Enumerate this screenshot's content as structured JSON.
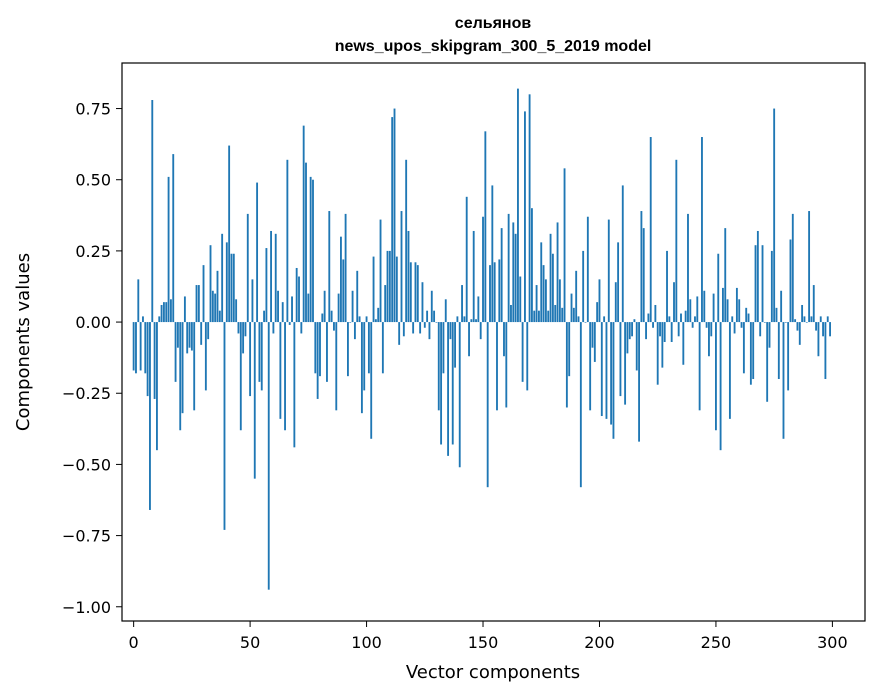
{
  "chart_data": {
    "type": "bar",
    "title": "сельянов",
    "subtitle": "news_upos_skipgram_300_5_2019 model",
    "xlabel": "Vector components",
    "ylabel": "Components values",
    "xlim": [
      -5,
      314
    ],
    "ylim": [
      -1.05,
      0.91
    ],
    "xticks": [
      0,
      50,
      100,
      150,
      200,
      250,
      300
    ],
    "yticks": [
      -1.0,
      -0.75,
      -0.5,
      -0.25,
      0.0,
      0.25,
      0.5,
      0.75
    ],
    "ytick_labels": [
      "−1.00",
      "−0.75",
      "−0.50",
      "−0.25",
      "0.00",
      "0.25",
      "0.50",
      "0.75"
    ],
    "xtick_labels": [
      "0",
      "50",
      "100",
      "150",
      "200",
      "250",
      "300"
    ],
    "bar_color": "#1f77b4",
    "series": [
      {
        "name": "сельянов",
        "values": [
          -0.17,
          -0.18,
          0.15,
          -0.17,
          0.02,
          -0.18,
          -0.26,
          -0.66,
          0.78,
          -0.27,
          -0.45,
          0.02,
          0.06,
          0.07,
          0.07,
          0.51,
          0.08,
          0.59,
          -0.21,
          -0.09,
          -0.38,
          -0.32,
          0.09,
          -0.11,
          -0.09,
          -0.1,
          -0.31,
          0.13,
          0.13,
          -0.08,
          0.2,
          -0.24,
          -0.06,
          0.27,
          0.11,
          0.1,
          0.18,
          0.04,
          0.31,
          -0.73,
          0.28,
          0.62,
          0.24,
          0.24,
          0.08,
          -0.04,
          -0.38,
          -0.11,
          -0.05,
          0.38,
          -0.26,
          0.15,
          -0.55,
          0.49,
          -0.21,
          -0.24,
          0.04,
          0.26,
          -0.94,
          0.32,
          -0.04,
          0.31,
          0.11,
          -0.34,
          0.07,
          -0.38,
          0.57,
          -0.01,
          0.09,
          -0.44,
          0.19,
          0.16,
          -0.04,
          0.69,
          0.56,
          0.1,
          0.51,
          0.5,
          -0.18,
          -0.27,
          -0.19,
          0.03,
          0.11,
          -0.21,
          0.39,
          0.04,
          -0.03,
          -0.31,
          0.1,
          0.3,
          0.22,
          0.38,
          -0.19,
          0.0,
          0.11,
          -0.06,
          0.18,
          0.02,
          -0.32,
          -0.24,
          0.02,
          -0.18,
          -0.41,
          0.23,
          0.01,
          0.05,
          0.36,
          -0.18,
          0.13,
          0.25,
          0.25,
          0.72,
          0.75,
          0.23,
          -0.08,
          0.39,
          -0.05,
          0.57,
          0.32,
          0.21,
          -0.04,
          0.21,
          0.2,
          -0.04,
          0.14,
          -0.02,
          0.04,
          -0.06,
          0.11,
          0.04,
          0.0,
          -0.31,
          -0.43,
          -0.18,
          0.08,
          -0.47,
          -0.06,
          -0.43,
          -0.16,
          0.02,
          -0.51,
          0.13,
          0.02,
          0.44,
          -0.12,
          0.01,
          0.32,
          0.01,
          0.09,
          -0.06,
          0.37,
          0.67,
          -0.58,
          0.2,
          0.48,
          0.21,
          -0.31,
          0.22,
          0.33,
          -0.12,
          -0.3,
          0.38,
          0.06,
          0.35,
          0.31,
          0.82,
          0.16,
          -0.21,
          0.74,
          -0.24,
          0.8,
          0.4,
          0.04,
          0.13,
          0.04,
          0.28,
          0.2,
          0.15,
          0.04,
          0.31,
          0.24,
          0.06,
          0.35,
          0.15,
          0.05,
          0.54,
          -0.3,
          -0.19,
          0.1,
          0.05,
          0.18,
          0.02,
          -0.58,
          0.25,
          0.0,
          0.37,
          -0.31,
          -0.09,
          -0.14,
          0.07,
          0.15,
          -0.33,
          0.02,
          -0.34,
          0.36,
          -0.36,
          -0.41,
          0.14,
          0.28,
          -0.26,
          0.48,
          -0.29,
          -0.11,
          -0.06,
          -0.05,
          0.01,
          -0.17,
          -0.42,
          0.39,
          0.33,
          -0.06,
          0.03,
          0.65,
          -0.02,
          0.06,
          -0.22,
          -0.05,
          -0.16,
          -0.07,
          0.25,
          0.02,
          -0.07,
          0.14,
          0.57,
          -0.05,
          0.03,
          -0.15,
          0.04,
          0.38,
          0.08,
          -0.02,
          0.02,
          0.09,
          -0.31,
          0.65,
          0.11,
          -0.02,
          -0.12,
          -0.05,
          0.1,
          -0.38,
          0.24,
          -0.45,
          0.12,
          0.33,
          0.08,
          -0.34,
          0.02,
          -0.04,
          0.12,
          0.08,
          -0.02,
          -0.18,
          0.05,
          0.03,
          -0.22,
          -0.2,
          0.27,
          0.32,
          -0.05,
          0.27,
          0.0,
          -0.28,
          -0.09,
          0.25,
          0.75,
          0.05,
          -0.2,
          0.11,
          -0.41,
          0.0,
          -0.24,
          0.29,
          0.38,
          0.01,
          -0.03,
          -0.08,
          0.06,
          0.02,
          0.0,
          0.39,
          0.02,
          0.13,
          -0.03,
          -0.12,
          0.02,
          -0.05,
          -0.2,
          0.02,
          -0.05
        ]
      }
    ]
  }
}
